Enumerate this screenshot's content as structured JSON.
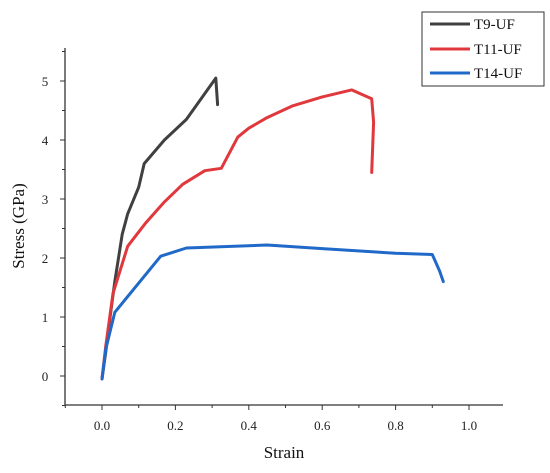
{
  "chart_data": {
    "type": "line",
    "title": "",
    "xlabel": "Strain",
    "ylabel": "Stress (GPa)",
    "xlim": [
      -0.1,
      1.1
    ],
    "ylim": [
      -0.5,
      5.5
    ],
    "x_ticks": [
      0.0,
      0.2,
      0.4,
      0.6,
      0.8,
      1.0
    ],
    "x_tick_labels": [
      "0.0",
      "0.2",
      "0.4",
      "0.6",
      "0.8",
      "1.0"
    ],
    "y_ticks": [
      0,
      1,
      2,
      3,
      4,
      5
    ],
    "y_tick_labels": [
      "0",
      "1",
      "2",
      "3",
      "4",
      "5"
    ],
    "grid": false,
    "legend_position": "top-right",
    "series": [
      {
        "name": "T9-UF",
        "color": "#404040",
        "points": [
          [
            0.0,
            -0.05
          ],
          [
            0.01,
            0.4
          ],
          [
            0.02,
            0.9
          ],
          [
            0.035,
            1.6
          ],
          [
            0.055,
            2.4
          ],
          [
            0.07,
            2.75
          ],
          [
            0.1,
            3.2
          ],
          [
            0.115,
            3.6
          ],
          [
            0.17,
            4.0
          ],
          [
            0.23,
            4.35
          ],
          [
            0.31,
            5.05
          ],
          [
            0.315,
            4.6
          ]
        ]
      },
      {
        "name": "T11-UF",
        "color": "#e0383c",
        "points": [
          [
            0.0,
            -0.05
          ],
          [
            0.01,
            0.5
          ],
          [
            0.03,
            1.4
          ],
          [
            0.07,
            2.2
          ],
          [
            0.12,
            2.6
          ],
          [
            0.17,
            2.95
          ],
          [
            0.22,
            3.25
          ],
          [
            0.28,
            3.48
          ],
          [
            0.325,
            3.52
          ],
          [
            0.37,
            4.05
          ],
          [
            0.4,
            4.2
          ],
          [
            0.45,
            4.38
          ],
          [
            0.52,
            4.58
          ],
          [
            0.6,
            4.73
          ],
          [
            0.68,
            4.85
          ],
          [
            0.735,
            4.7
          ],
          [
            0.74,
            4.3
          ],
          [
            0.735,
            3.45
          ]
        ]
      },
      {
        "name": "T14-UF",
        "color": "#2069c8",
        "points": [
          [
            0.0,
            -0.05
          ],
          [
            0.01,
            0.45
          ],
          [
            0.035,
            1.08
          ],
          [
            0.16,
            2.03
          ],
          [
            0.23,
            2.17
          ],
          [
            0.45,
            2.22
          ],
          [
            0.6,
            2.16
          ],
          [
            0.8,
            2.08
          ],
          [
            0.9,
            2.06
          ],
          [
            0.92,
            1.78
          ],
          [
            0.93,
            1.6
          ]
        ]
      }
    ]
  }
}
